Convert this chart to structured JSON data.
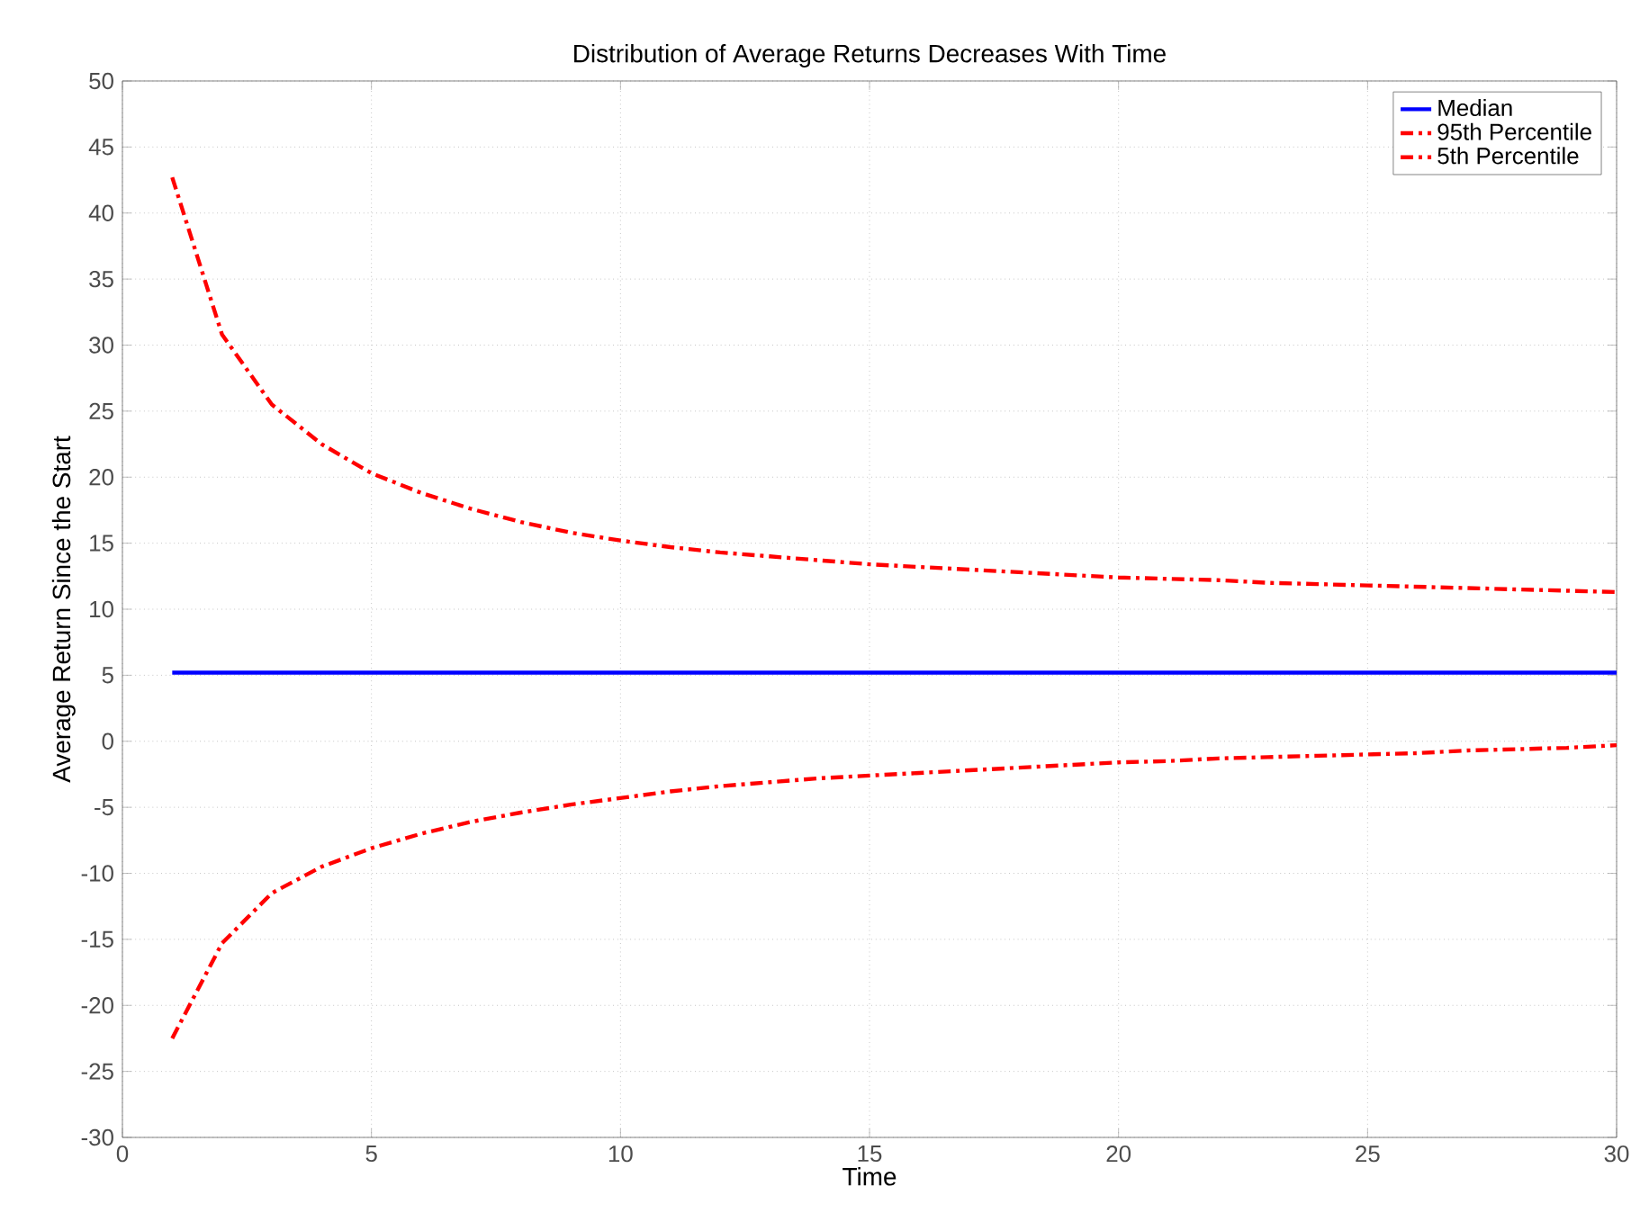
{
  "chart_data": {
    "type": "line",
    "title": "Distribution of Average Returns Decreases With Time",
    "xlabel": "Time",
    "ylabel": "Average Return Since the Start",
    "x": [
      1,
      2,
      3,
      4,
      5,
      6,
      7,
      8,
      9,
      10,
      11,
      12,
      13,
      14,
      15,
      16,
      17,
      18,
      19,
      20,
      21,
      22,
      23,
      24,
      25,
      26,
      27,
      28,
      29,
      30
    ],
    "series": [
      {
        "name": "Median",
        "color": "#0000ff",
        "line_style": "solid",
        "values": [
          5.2,
          5.2,
          5.2,
          5.2,
          5.2,
          5.2,
          5.2,
          5.2,
          5.2,
          5.2,
          5.2,
          5.2,
          5.2,
          5.2,
          5.2,
          5.2,
          5.2,
          5.2,
          5.2,
          5.2,
          5.2,
          5.2,
          5.2,
          5.2,
          5.2,
          5.2,
          5.2,
          5.2,
          5.2,
          5.2
        ]
      },
      {
        "name": "95th Percentile",
        "color": "#ff0000",
        "line_style": "dashdot",
        "values": [
          42.7,
          30.8,
          25.5,
          22.5,
          20.3,
          18.8,
          17.6,
          16.6,
          15.8,
          15.2,
          14.7,
          14.3,
          14.0,
          13.7,
          13.4,
          13.2,
          13.0,
          12.8,
          12.6,
          12.4,
          12.3,
          12.2,
          12.0,
          11.9,
          11.8,
          11.7,
          11.6,
          11.5,
          11.4,
          11.3
        ]
      },
      {
        "name": "5th Percentile",
        "color": "#ff0000",
        "line_style": "dashdot",
        "values": [
          -22.5,
          -15.3,
          -11.5,
          -9.5,
          -8.1,
          -7.0,
          -6.1,
          -5.4,
          -4.8,
          -4.3,
          -3.8,
          -3.4,
          -3.1,
          -2.8,
          -2.6,
          -2.4,
          -2.2,
          -2.0,
          -1.8,
          -1.6,
          -1.5,
          -1.3,
          -1.2,
          -1.1,
          -1.0,
          -0.9,
          -0.7,
          -0.6,
          -0.5,
          -0.3
        ]
      }
    ],
    "xlim": [
      0,
      30
    ],
    "ylim": [
      -30,
      50
    ],
    "xticks": [
      0,
      5,
      10,
      15,
      20,
      25,
      30
    ],
    "yticks": [
      -30,
      -25,
      -20,
      -15,
      -10,
      -5,
      0,
      5,
      10,
      15,
      20,
      25,
      30,
      35,
      40,
      45,
      50
    ],
    "grid": true,
    "legend": "top right",
    "marker": "none"
  }
}
